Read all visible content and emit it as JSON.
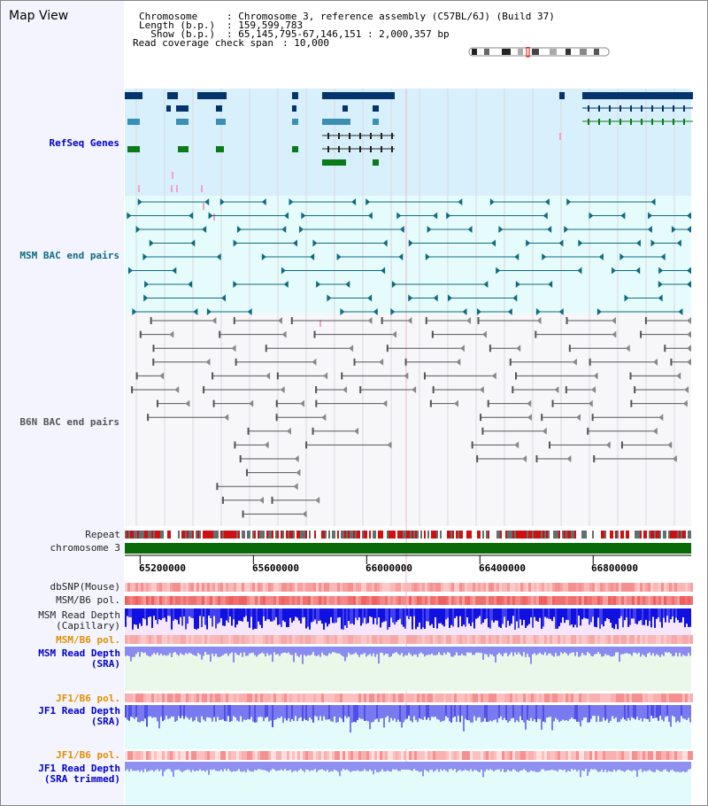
{
  "view": {
    "title": "Map View"
  },
  "header": {
    "chromosome_key": "Chromosome    ",
    "chromosome_val": ": Chromosome 3, reference assembly (C57BL/6J) (Build 37)",
    "length_key": "Length (b.p.)",
    "length_val": ": 159,599,783",
    "show_key": "  Show (b.p.)",
    "show_val": ": 65,145,795-67,146,151 : 2,000,357 bp",
    "coverage_key": "Read coverage check span",
    "coverage_val": ": 10,000"
  },
  "tracks": {
    "refseq": "RefSeq Genes",
    "msm_bac": "MSM BAC end pairs",
    "b6n_bac": "B6N BAC end pairs",
    "repeat": "Repeat",
    "chromosome": "chromosome 3",
    "dbsnp": "dbSNP(Mouse)",
    "msm_pol_1": "MSM/B6 pol.",
    "msm_depth_cap_1": "MSM Read Depth",
    "msm_depth_cap_2": "(Capillary)",
    "msm_pol_2": "MSM/B6 pol.",
    "msm_depth_sra_1": "MSM Read Depth",
    "msm_depth_sra_2": "(SRA)",
    "jf1_pol_1": "JF1/B6 pol.",
    "jf1_depth_sra_1": "JF1 Read Depth",
    "jf1_depth_sra_2": "(SRA)",
    "jf1_pol_2": "JF1/B6 pol.",
    "jf1_depth_trim_1": "JF1 Read Depth",
    "jf1_depth_trim_2": "(SRA trimmed)"
  },
  "scale": {
    "ticks": [
      "65200000",
      "65600000",
      "66000000",
      "66400000",
      "66800000"
    ],
    "tick_positions_bp": [
      65200000,
      65600000,
      66000000,
      66400000,
      66800000
    ],
    "start_bp": 65145795,
    "end_bp": 67146151
  },
  "colors": {
    "refseq_bg": "#d8f0fb",
    "msm_bg": "#e6fbfb",
    "b6n_bg": "#f7f7fa",
    "gene_dark": "#05336b",
    "gene_mid": "#3b8fb5",
    "gene_green": "#0a7a1a",
    "gene_pink": "#f5a0c8",
    "msm_pair": "#0e6b82",
    "b6n_pair": "#555555",
    "chromosome_bar": "#0a6a0a",
    "depth_blue": "#1010e0",
    "depth_light": "#7a7af0",
    "pol_red": "#f06060",
    "label_blue": "#0000cc",
    "label_teal": "#0e6b82",
    "label_orange": "#e09000"
  }
}
